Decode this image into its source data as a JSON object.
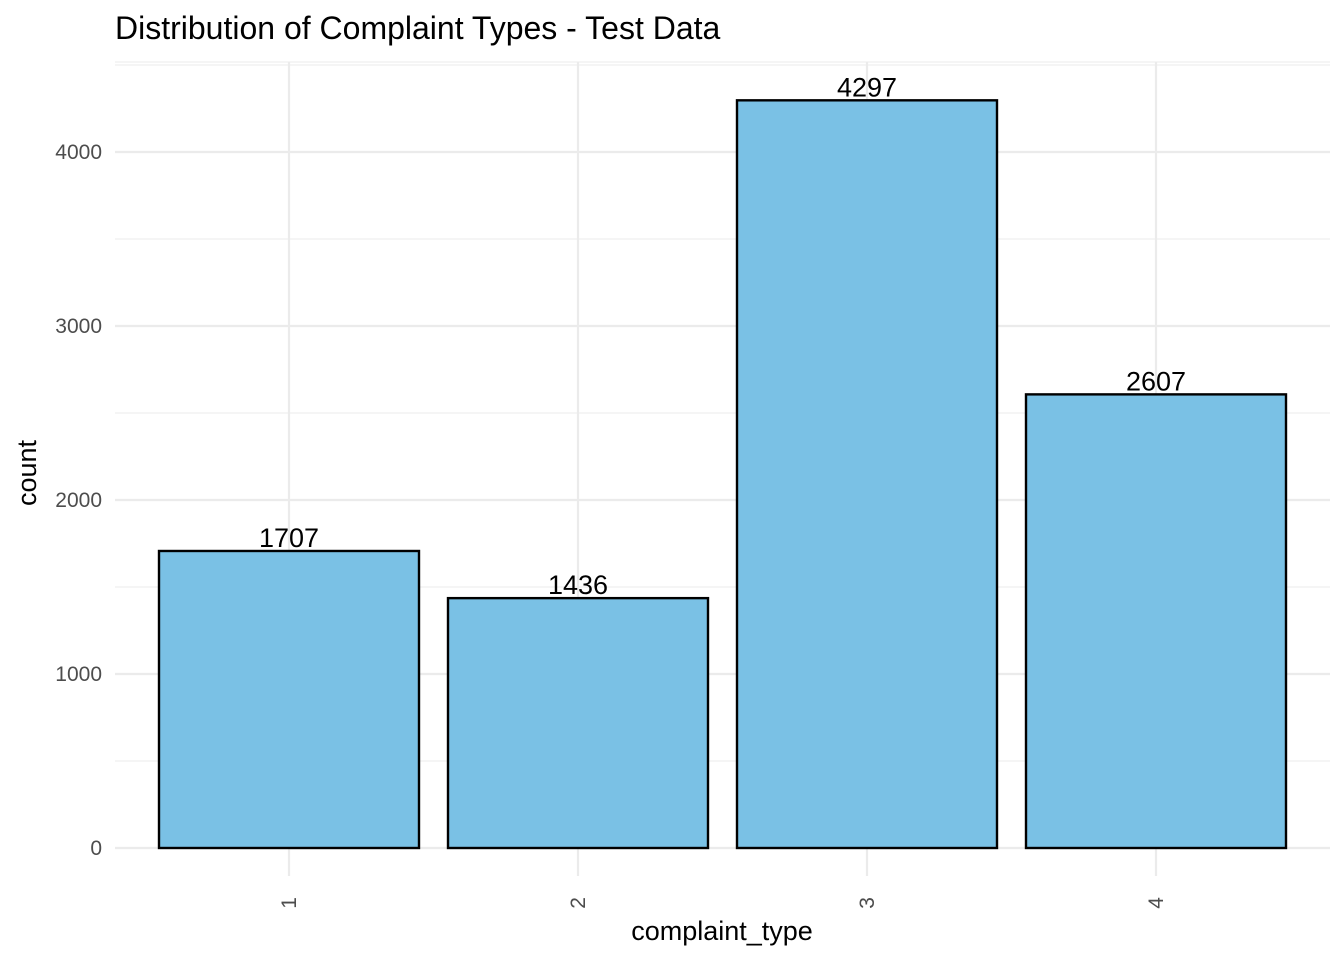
{
  "chart_data": {
    "type": "bar",
    "title": "Distribution of Complaint Types - Test Data",
    "xlabel": "complaint_type",
    "ylabel": "count",
    "categories": [
      "1",
      "2",
      "3",
      "4"
    ],
    "values": [
      1707,
      1436,
      4297,
      2607
    ],
    "data_labels": [
      "1707",
      "1436",
      "4297",
      "2607"
    ],
    "y_ticks": [
      0,
      1000,
      2000,
      3000,
      4000
    ],
    "y_tick_labels": [
      "0",
      "1000",
      "2000",
      "3000",
      "4000"
    ],
    "ylim": [
      0,
      4500
    ],
    "grid": true,
    "legend": "none",
    "colors": {
      "bar_fill": "#7AC1E5",
      "bar_outline": "#000000"
    }
  }
}
